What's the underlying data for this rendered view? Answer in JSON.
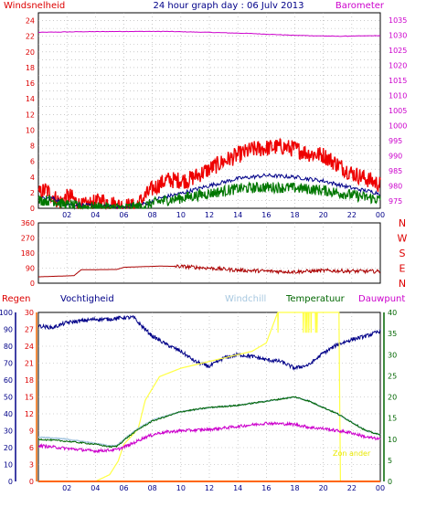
{
  "title": "24 hour graph day : 06 Julv 2013",
  "colors": {
    "wind": "#ee0000",
    "gust": "#ee0000",
    "avgwind": "#007700",
    "avgwind2": "#000088",
    "pressure": "#cc00cc",
    "direction": "#aa0000",
    "rain": "#ff6600",
    "humidity": "#000088",
    "windchill": "#a8c8e0",
    "temperature": "#006600",
    "dewpoint": "#cc00cc",
    "sun": "#ffff44",
    "border": "#000000",
    "gridline": "#aaaaaa"
  },
  "chart_data": [
    {
      "type": "line",
      "x_ticks": [
        "02",
        "04",
        "06",
        "08",
        "10",
        "12",
        "14",
        "16",
        "18",
        "20",
        "22",
        "00"
      ],
      "left_label": "Windsnelheid",
      "right_label": "Barometer",
      "left_ticks": [
        "0",
        "2",
        "4",
        "6",
        "8",
        "10",
        "12",
        "14",
        "16",
        "18",
        "20",
        "22",
        "24"
      ],
      "right_ticks": [
        "975",
        "980",
        "985",
        "990",
        "995",
        "1000",
        "1005",
        "1010",
        "1015",
        "1020",
        "1025",
        "1030",
        "1035"
      ],
      "left_ylim": [
        0,
        25
      ],
      "right_ylim": [
        972.5,
        1037.5
      ],
      "series": [
        {
          "key": "pressure",
          "axis": "right",
          "x": [
            0,
            3,
            6,
            9,
            12,
            15,
            18,
            21,
            24
          ],
          "values": [
            1031.0,
            1031.2,
            1031.3,
            1031.3,
            1031.0,
            1030.6,
            1030.0,
            1029.7,
            1029.9
          ]
        },
        {
          "key": "gust",
          "axis": "left",
          "x": [
            0,
            0.5,
            1.5,
            2.2,
            3.0,
            4.5,
            5.5,
            6.8,
            8.0,
            9.0,
            10.5,
            12,
            13,
            14,
            15,
            16,
            17,
            18,
            19,
            20,
            21,
            22,
            23,
            24
          ],
          "values": [
            1.8,
            2.4,
            0.8,
            1.6,
            0.2,
            1.0,
            0.4,
            0.2,
            2.5,
            3.6,
            3.6,
            5.0,
            6.0,
            6.8,
            7.5,
            7.7,
            7.9,
            7.6,
            7.0,
            6.8,
            5.6,
            4.5,
            3.8,
            3.0
          ]
        },
        {
          "key": "avgwind2",
          "axis": "left",
          "x": [
            0,
            1,
            2,
            3,
            6,
            7.5,
            8.5,
            10,
            12,
            14,
            16,
            18,
            20,
            22,
            24
          ],
          "values": [
            1.2,
            1.3,
            0.6,
            0.4,
            0.1,
            0.6,
            1.3,
            1.9,
            2.9,
            3.8,
            4.2,
            4.0,
            3.5,
            2.6,
            1.9
          ]
        },
        {
          "key": "avgwind",
          "axis": "left",
          "x": [
            0,
            1,
            2,
            3,
            6,
            7.5,
            8.5,
            10,
            12,
            14,
            16,
            18,
            20,
            22,
            24
          ],
          "values": [
            1.0,
            1.0,
            0.4,
            0.2,
            0.0,
            0.3,
            0.9,
            1.3,
            1.9,
            2.5,
            2.7,
            2.6,
            2.3,
            1.7,
            1.1
          ]
        }
      ]
    },
    {
      "type": "line",
      "x_ticks": [],
      "left_ticks": [
        "0",
        "90",
        "180",
        "270",
        "360"
      ],
      "ylim": [
        0,
        360
      ],
      "compass": [
        "N",
        "W",
        "S",
        "E",
        "N"
      ],
      "series": [
        {
          "key": "direction",
          "x": [
            0,
            2.5,
            3.0,
            5.5,
            6.0,
            8.5,
            10,
            12,
            14,
            16,
            18,
            20,
            22,
            24
          ],
          "values": [
            38,
            45,
            80,
            82,
            95,
            102,
            100,
            90,
            78,
            72,
            68,
            75,
            72,
            70
          ]
        }
      ]
    },
    {
      "type": "line",
      "x_ticks": [
        "02",
        "04",
        "06",
        "08",
        "10",
        "12",
        "14",
        "16",
        "18",
        "20",
        "22",
        "00"
      ],
      "legend": [
        "Regen",
        "Vochtigheid",
        "Windchill",
        "Temperatuur",
        "Dauwpunt"
      ],
      "rain_ticks": [
        "0",
        "10",
        "20",
        "30",
        "40",
        "50",
        "60",
        "70",
        "80",
        "90",
        "100"
      ],
      "hum_ticks": [
        "0",
        "3",
        "6",
        "9",
        "12",
        "15",
        "18",
        "21",
        "24",
        "27",
        "30"
      ],
      "temp_ticks": [
        "0",
        "5",
        "10",
        "15",
        "20",
        "25",
        "30",
        "35",
        "40"
      ],
      "sun_label": "Zon ander",
      "series": [
        {
          "key": "humidity",
          "axis": "rain",
          "x": [
            0,
            1,
            2,
            3,
            4,
            5,
            6,
            6.7,
            7.0,
            8,
            9,
            10,
            11,
            12,
            13,
            14,
            15,
            16,
            17,
            18,
            19,
            20,
            21,
            22,
            23,
            24
          ],
          "values": [
            92,
            91,
            94,
            95,
            96,
            96,
            97,
            97,
            94,
            86,
            81,
            77,
            71,
            68,
            73,
            75,
            74,
            72,
            71,
            67,
            69,
            76,
            81,
            84,
            86,
            89
          ]
        },
        {
          "key": "sun",
          "axis": "rain",
          "x": [
            0,
            4.0,
            5.0,
            5.6,
            6.0,
            7.0,
            7.5,
            8.5,
            10,
            11,
            12,
            13,
            14,
            15,
            16,
            16.8,
            17.2,
            18.5,
            19.5,
            20,
            20.5,
            21.1,
            21.2,
            24
          ],
          "values": [
            0,
            0,
            4,
            12,
            22,
            31,
            48,
            62,
            67,
            69,
            71,
            73,
            75,
            77,
            82,
            100,
            100,
            100,
            100,
            100,
            100,
            100,
            0,
            0
          ]
        },
        {
          "key": "windchill",
          "axis": "temp",
          "x": [
            0,
            2,
            4,
            5,
            5.5,
            6.2,
            7,
            8,
            10,
            12,
            14,
            16,
            18,
            19,
            20,
            21,
            22,
            23,
            24
          ],
          "values": [
            10.5,
            10,
            9,
            8.4,
            8.5,
            10.5,
            12.5,
            14.5,
            16.5,
            17.5,
            18,
            19,
            20,
            19,
            17.5,
            16,
            14,
            12,
            11
          ]
        },
        {
          "key": "temperature",
          "axis": "temp",
          "x": [
            0,
            2,
            4,
            5,
            5.5,
            6.2,
            7,
            8,
            10,
            12,
            14,
            16,
            18,
            19,
            20,
            21,
            22,
            23,
            24
          ],
          "values": [
            10,
            9.5,
            8.8,
            8.2,
            8.3,
            10.3,
            12.3,
            14.3,
            16.5,
            17.5,
            18,
            19,
            20,
            19,
            17.5,
            16,
            14,
            12,
            11
          ]
        },
        {
          "key": "dewpoint",
          "axis": "temp",
          "x": [
            0,
            2,
            4,
            5.5,
            6.5,
            7.5,
            8.5,
            10,
            12,
            14,
            16,
            18,
            19,
            20,
            21,
            22,
            23,
            24
          ],
          "values": [
            8.5,
            7.8,
            7.2,
            7.5,
            8.8,
            10.5,
            11.5,
            12,
            12.3,
            13,
            13.8,
            13.5,
            12.8,
            12.5,
            12,
            11.5,
            10.5,
            10
          ]
        },
        {
          "key": "rain",
          "axis": "rain",
          "x": [
            0,
            24
          ],
          "values": [
            0,
            0
          ]
        }
      ]
    }
  ]
}
